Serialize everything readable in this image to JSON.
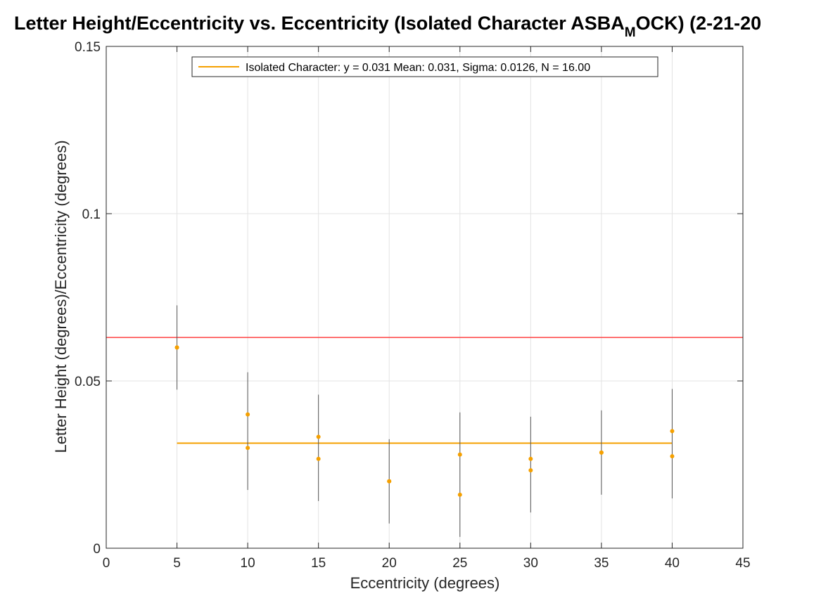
{
  "chart_data": {
    "type": "scatter",
    "title_parts": [
      "Letter Height/Eccentricity vs. Eccentricity (Isolated Character ASBA",
      "M",
      "OCK) (2-21-20"
    ],
    "xlabel": "Eccentricity (degrees)",
    "ylabel": "Letter Height (degrees)/Eccentricity (degrees)",
    "xlim": [
      0,
      45
    ],
    "ylim": [
      0,
      0.15
    ],
    "x_ticks": [
      0,
      5,
      10,
      15,
      20,
      25,
      30,
      35,
      40,
      45
    ],
    "x_tick_labels": [
      "0",
      "5",
      "10",
      "15",
      "20",
      "25",
      "30",
      "35",
      "40",
      "45"
    ],
    "y_ticks": [
      0,
      0.05,
      0.1,
      0.15
    ],
    "y_tick_labels": [
      "0",
      "0.05",
      "0.1",
      "0.15"
    ],
    "grid": true,
    "legend": {
      "location": "top-center",
      "entries": [
        "Isolated Character: y = 0.031 Mean: 0.031, Sigma: 0.0126, N = 16.00"
      ]
    },
    "colors": {
      "points": "#f5a000",
      "mean_line": "#f5a000",
      "reference_line": "#ff4040",
      "error_bars": "#555555",
      "grid": "#e3e3e3",
      "axes": "#262626"
    },
    "reference_line_y": 0.063,
    "mean_line": {
      "y": 0.0314,
      "x_start": 5,
      "x_end": 40
    },
    "error_sigma": 0.0126,
    "points": [
      {
        "x": 5,
        "y": 0.06
      },
      {
        "x": 5,
        "y": 0.06
      },
      {
        "x": 10,
        "y": 0.04
      },
      {
        "x": 10,
        "y": 0.03
      },
      {
        "x": 15,
        "y": 0.0333
      },
      {
        "x": 15,
        "y": 0.0267
      },
      {
        "x": 20,
        "y": 0.02
      },
      {
        "x": 20,
        "y": 0.02
      },
      {
        "x": 25,
        "y": 0.028
      },
      {
        "x": 25,
        "y": 0.016
      },
      {
        "x": 30,
        "y": 0.0267
      },
      {
        "x": 30,
        "y": 0.0233
      },
      {
        "x": 35,
        "y": 0.0286
      },
      {
        "x": 35,
        "y": 0.0286
      },
      {
        "x": 40,
        "y": 0.035
      },
      {
        "x": 40,
        "y": 0.0275
      }
    ],
    "error_bars": [
      {
        "x": 5,
        "low": 0.0474,
        "high": 0.0726
      },
      {
        "x": 10,
        "low": 0.0174,
        "high": 0.0526
      },
      {
        "x": 15,
        "low": 0.0141,
        "high": 0.0459
      },
      {
        "x": 20,
        "low": 0.0074,
        "high": 0.0326
      },
      {
        "x": 25,
        "low": 0.0034,
        "high": 0.0406
      },
      {
        "x": 30,
        "low": 0.0107,
        "high": 0.0393
      },
      {
        "x": 35,
        "low": 0.016,
        "high": 0.0412
      },
      {
        "x": 40,
        "low": 0.0149,
        "high": 0.0476
      }
    ]
  }
}
